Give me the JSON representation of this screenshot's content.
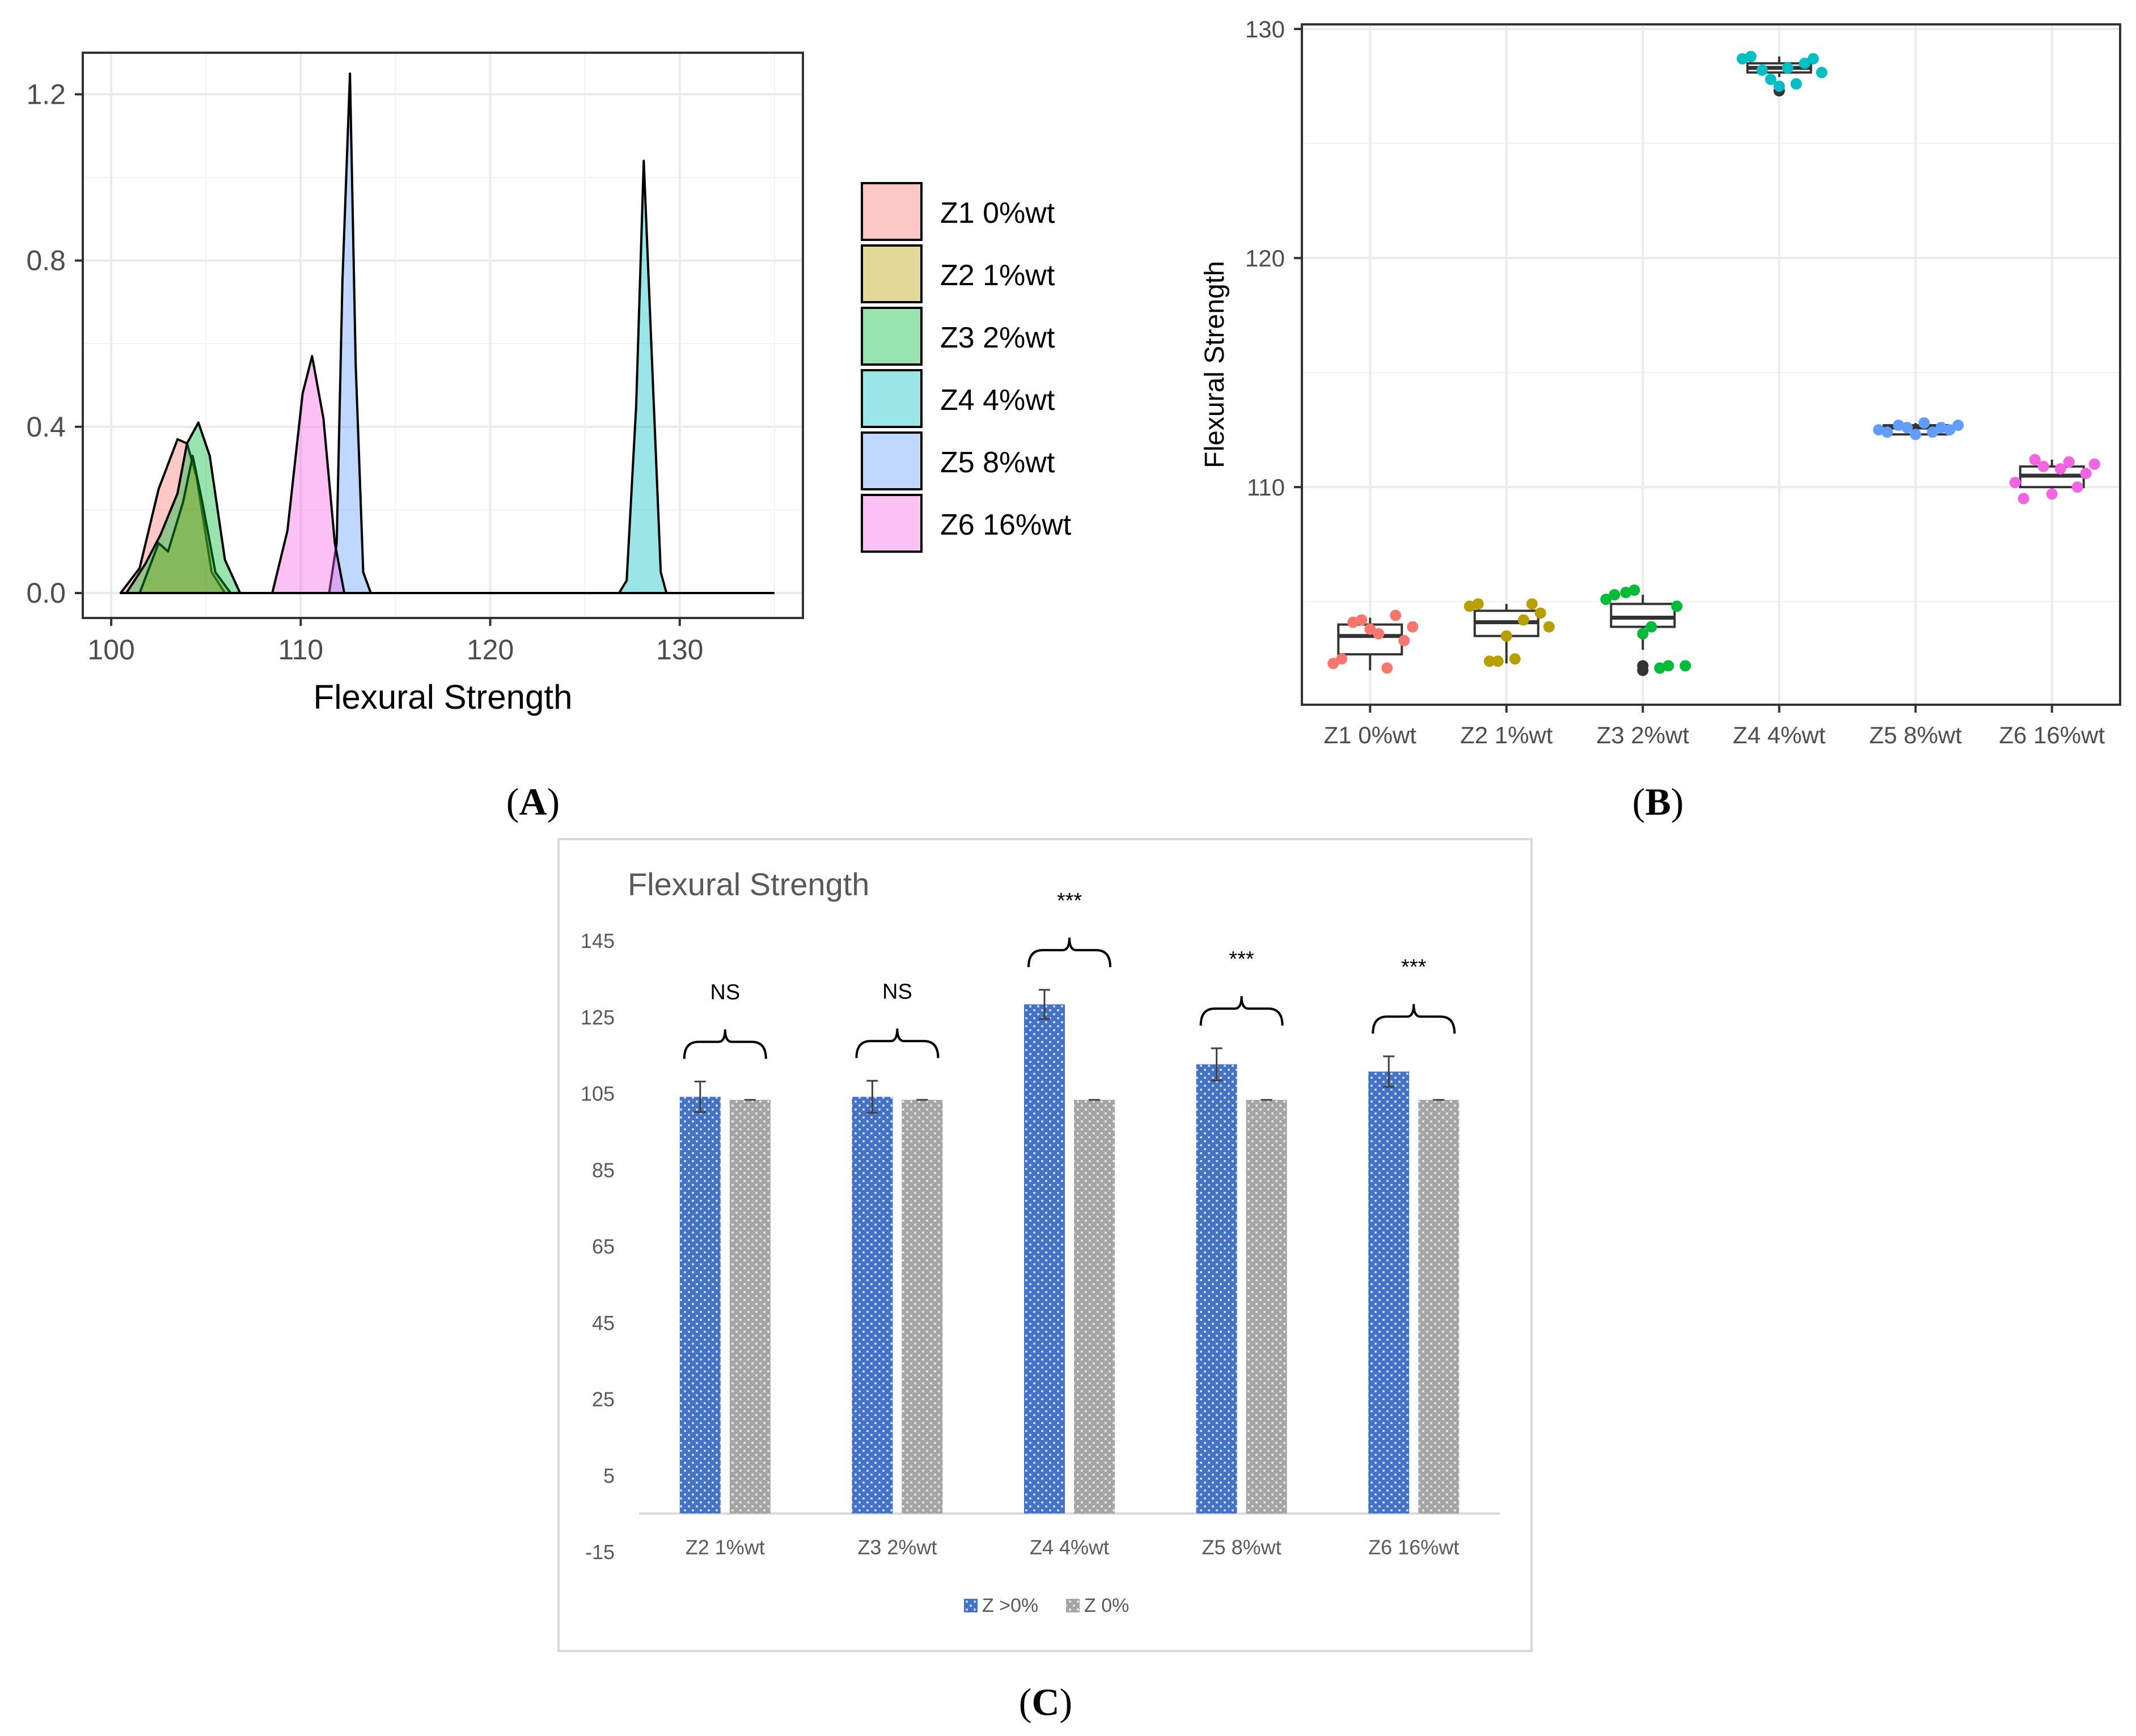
{
  "panel_labels": {
    "a": "A",
    "b": "B",
    "c": "C"
  },
  "colors": {
    "z1": "#F8766D",
    "z2": "#B79F00",
    "z3": "#00BA38",
    "z4": "#00BFC4",
    "z5": "#619CFF",
    "z6": "#F564E3",
    "bar_blue": "#4472C4",
    "bar_gray": "#A5A5A5",
    "grid": "#EBEBEB",
    "excel_text": "#595959"
  },
  "chart_data": [
    {
      "id": "A",
      "type": "area",
      "subtype": "density",
      "title": "",
      "xlabel": "Flexural Strength",
      "ylabel": "",
      "xlim": [
        98.5,
        136.5
      ],
      "ylim": [
        -0.06,
        1.3
      ],
      "x_ticks": [
        100,
        110,
        120,
        130
      ],
      "x_tick_labels": [
        "100",
        "110",
        "120",
        "130"
      ],
      "y_ticks": [
        0.0,
        0.4,
        0.8,
        1.2
      ],
      "y_tick_labels": [
        "0.0",
        "0.4",
        "0.8",
        "1.2"
      ],
      "grid": true,
      "legend_position": "right",
      "series": [
        {
          "name": "Z1 0%wt",
          "color": "#F8766D",
          "points": [
            [
              100.5,
              0
            ],
            [
              101.5,
              0.06
            ],
            [
              102.5,
              0.25
            ],
            [
              103.5,
              0.37
            ],
            [
              104,
              0.36
            ],
            [
              104.5,
              0.28
            ],
            [
              105.3,
              0.05
            ],
            [
              106,
              0
            ]
          ]
        },
        {
          "name": "Z2 1%wt",
          "color": "#B79F00",
          "points": [
            [
              101.5,
              0
            ],
            [
              102.5,
              0.12
            ],
            [
              103,
              0.1
            ],
            [
              103.8,
              0.22
            ],
            [
              104.3,
              0.33
            ],
            [
              104.8,
              0.22
            ],
            [
              105.5,
              0.05
            ],
            [
              106.3,
              0
            ]
          ]
        },
        {
          "name": "Z3 2%wt",
          "color": "#00BA38",
          "points": [
            [
              100.8,
              0
            ],
            [
              101.8,
              0.07
            ],
            [
              102.6,
              0.14
            ],
            [
              103.5,
              0.24
            ],
            [
              104,
              0.36
            ],
            [
              104.6,
              0.41
            ],
            [
              105.2,
              0.33
            ],
            [
              106,
              0.08
            ],
            [
              106.8,
              0
            ]
          ]
        },
        {
          "name": "Z4 4%wt",
          "color": "#00BFC4",
          "points": [
            [
              126.8,
              0
            ],
            [
              127.2,
              0.03
            ],
            [
              127.7,
              0.45
            ],
            [
              128.1,
              1.04
            ],
            [
              128.5,
              0.6
            ],
            [
              129,
              0.05
            ],
            [
              129.3,
              0
            ]
          ]
        },
        {
          "name": "Z5 8%wt",
          "color": "#619CFF",
          "points": [
            [
              111.5,
              0
            ],
            [
              111.9,
              0.12
            ],
            [
              112.2,
              0.75
            ],
            [
              112.6,
              1.25
            ],
            [
              112.9,
              0.55
            ],
            [
              113.3,
              0.05
            ],
            [
              113.7,
              0
            ]
          ]
        },
        {
          "name": "Z6 16%wt",
          "color": "#F564E3",
          "points": [
            [
              108.5,
              0
            ],
            [
              109.3,
              0.15
            ],
            [
              110.1,
              0.48
            ],
            [
              110.6,
              0.57
            ],
            [
              111.2,
              0.42
            ],
            [
              111.8,
              0.12
            ],
            [
              112.3,
              0
            ]
          ]
        }
      ]
    },
    {
      "id": "B",
      "type": "box",
      "title": "",
      "xlabel": "",
      "ylabel": "Flexural Strength",
      "ylim": [
        100.5,
        130.2
      ],
      "y_ticks": [
        110,
        120,
        130
      ],
      "y_tick_labels": [
        "110",
        "120",
        "130"
      ],
      "grid": true,
      "categories": [
        "Z1 0%wt",
        "Z2 1%wt",
        "Z3 2%wt",
        "Z4 4%wt",
        "Z5 8%wt",
        "Z6 16%wt"
      ],
      "boxes": [
        {
          "q1": 102.7,
          "median": 103.5,
          "q3": 104.0,
          "whisker_low": 102.0,
          "whisker_high": 104.3,
          "outliers": []
        },
        {
          "q1": 103.5,
          "median": 104.1,
          "q3": 104.6,
          "whisker_low": 102.3,
          "whisker_high": 104.9,
          "outliers": []
        },
        {
          "q1": 103.9,
          "median": 104.3,
          "q3": 104.9,
          "whisker_low": 102.9,
          "whisker_high": 105.3,
          "outliers": [
            102.0,
            102.2
          ]
        },
        {
          "q1": 128.1,
          "median": 128.3,
          "q3": 128.5,
          "whisker_low": 127.9,
          "whisker_high": 128.8,
          "outliers": [
            127.3
          ]
        },
        {
          "q1": 112.3,
          "median": 112.6,
          "q3": 112.7,
          "whisker_low": 112.2,
          "whisker_high": 112.8,
          "outliers": []
        },
        {
          "q1": 110.0,
          "median": 110.5,
          "q3": 110.9,
          "whisker_low": 109.7,
          "whisker_high": 111.2,
          "outliers": []
        }
      ],
      "points": [
        [
          102.3,
          102.5,
          104.1,
          104.2,
          103.8,
          103.6,
          102.1,
          104.4,
          103.3,
          103.9
        ],
        [
          104.8,
          104.9,
          102.4,
          102.4,
          103.5,
          102.5,
          104.2,
          104.9,
          104.5,
          103.9
        ],
        [
          105.1,
          105.3,
          105.4,
          105.5,
          103.6,
          103.9,
          102.1,
          102.2,
          104.8,
          102.2
        ],
        [
          128.7,
          128.8,
          128.2,
          127.8,
          127.5,
          128.3,
          127.6,
          128.5,
          128.7,
          128.1
        ],
        [
          112.5,
          112.4,
          112.7,
          112.6,
          112.3,
          112.8,
          112.4,
          112.6,
          112.5,
          112.7
        ],
        [
          110.2,
          109.5,
          111.2,
          110.9,
          109.7,
          110.8,
          111.1,
          110.0,
          110.6,
          111.0
        ]
      ]
    },
    {
      "id": "C",
      "type": "bar",
      "title": "Flexural Strength",
      "xlabel": "",
      "ylabel": "",
      "ylim": [
        -15,
        145
      ],
      "y_ticks": [
        -15,
        5,
        25,
        45,
        65,
        85,
        105,
        125,
        145
      ],
      "y_tick_labels": [
        "-15",
        "5",
        "25",
        "45",
        "65",
        "85",
        "105",
        "125",
        "145"
      ],
      "grid": false,
      "legend_position": "bottom",
      "categories": [
        "Z2 1%wt",
        "Z3 2%wt",
        "Z4 4%wt",
        "Z5 8%wt",
        "Z6 16%wt"
      ],
      "series": [
        {
          "name": "Z >0%",
          "color": "#4472C4",
          "values": [
            104.1,
            104.1,
            128.3,
            112.6,
            110.7
          ],
          "errors": [
            4.0,
            4.2,
            3.8,
            4.2,
            4.0
          ]
        },
        {
          "name": "Z 0%",
          "color": "#A5A5A5",
          "values": [
            103.3,
            103.3,
            103.3,
            103.3,
            103.3
          ],
          "errors": [
            0,
            0,
            0,
            0,
            0
          ]
        }
      ],
      "significance": [
        "NS",
        "NS",
        "***",
        "***",
        "***"
      ]
    }
  ]
}
